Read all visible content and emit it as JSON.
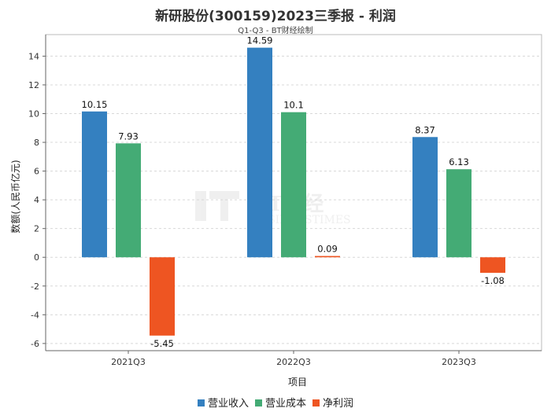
{
  "chart_data": {
    "type": "bar",
    "title": "新研股份(300159)2023三季报 - 利润",
    "subtitle": "Q1-Q3 - BT财经绘制",
    "xlabel": "项目",
    "ylabel": "数额(人民币亿元)",
    "categories": [
      "2021Q3",
      "2022Q3",
      "2023Q3"
    ],
    "ylim": [
      -6.5,
      15.5
    ],
    "yticks": [
      -6,
      -4,
      -2,
      0,
      2,
      4,
      6,
      8,
      10,
      12,
      14
    ],
    "grid": true,
    "legend_position": "bottom",
    "watermark": "BT财经 BUSINESSTIMES",
    "series": [
      {
        "name": "营业收入",
        "color": "#3480c0",
        "values": [
          10.15,
          14.59,
          8.37
        ],
        "labels": [
          "10.15",
          "14.59",
          "8.37"
        ]
      },
      {
        "name": "营业成本",
        "color": "#44ab75",
        "values": [
          7.93,
          10.1,
          6.13
        ],
        "labels": [
          "7.93",
          "10.1",
          "6.13"
        ]
      },
      {
        "name": "净利润",
        "color": "#ee5522",
        "values": [
          -5.45,
          0.09,
          -1.08
        ],
        "labels": [
          "-5.45",
          "0.09",
          "-1.08"
        ]
      }
    ]
  }
}
